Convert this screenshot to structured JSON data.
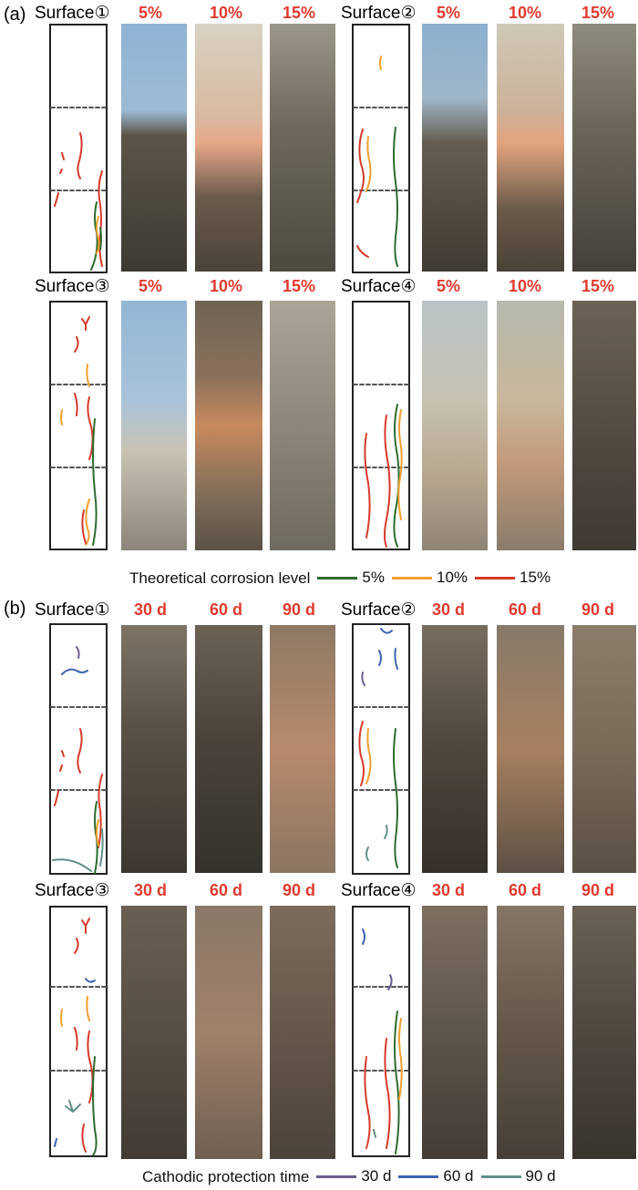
{
  "panel_a": {
    "label": "(a)",
    "surfaces": [
      {
        "title": "Surface①",
        "columns": [
          "5%",
          "10%",
          "15%"
        ]
      },
      {
        "title": "Surface②",
        "columns": [
          "5%",
          "10%",
          "15%"
        ]
      },
      {
        "title": "Surface③",
        "columns": [
          "5%",
          "10%",
          "15%"
        ]
      },
      {
        "title": "Surface④",
        "columns": [
          "5%",
          "10%",
          "15%"
        ]
      }
    ],
    "legend": {
      "title": "Theoretical corrosion level",
      "items": [
        {
          "label": "5%",
          "color": "#2e6b2f"
        },
        {
          "label": "10%",
          "color": "#f0a030"
        },
        {
          "label": "15%",
          "color": "#d63a2a"
        }
      ]
    }
  },
  "panel_b": {
    "label": "(b)",
    "surfaces": [
      {
        "title": "Surface①",
        "columns": [
          "30 d",
          "60 d",
          "90 d"
        ]
      },
      {
        "title": "Surface②",
        "columns": [
          "30 d",
          "60 d",
          "90 d"
        ]
      },
      {
        "title": "Surface③",
        "columns": [
          "30 d",
          "60 d",
          "90 d"
        ]
      },
      {
        "title": "Surface④",
        "columns": [
          "30 d",
          "60 d",
          "90 d"
        ]
      }
    ],
    "legend": {
      "title": "Cathodic protection time",
      "items": [
        {
          "label": "30 d",
          "color": "#6b5a8e"
        },
        {
          "label": "60 d",
          "color": "#3f63b0"
        },
        {
          "label": "90 d",
          "color": "#5f8f88"
        }
      ]
    }
  },
  "colors": {
    "label_red": "#e03a2f",
    "crack_green": "#2e6b2f",
    "crack_orange": "#f0a030",
    "crack_red": "#d63a2a",
    "crack_purple": "#6b5a8e",
    "crack_blue": "#3f63b0",
    "crack_teal": "#5f8f88"
  }
}
